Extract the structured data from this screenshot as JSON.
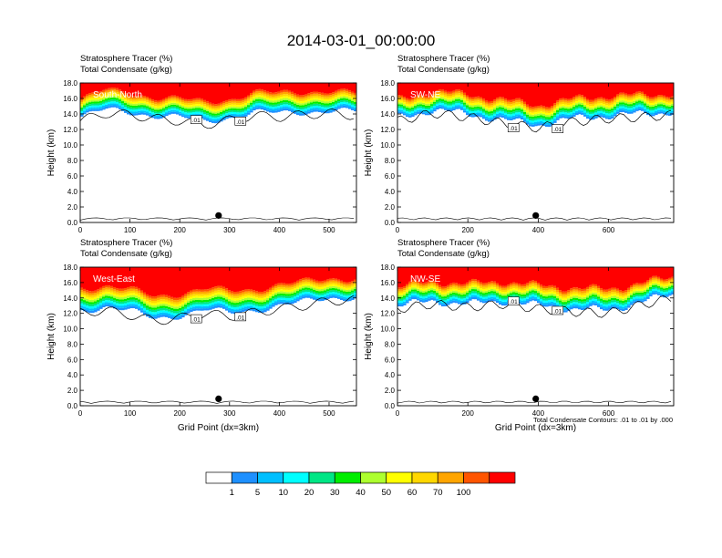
{
  "figure": {
    "title": "2014-03-01_00:00:00",
    "header_line1": "Stratosphere Tracer   (%)",
    "header_line2": "Total Condensate   (g/kg)",
    "ylabel": "Height (km)",
    "xlabel": "Grid Point (dx=3km)",
    "contour_note": "Total Condensate Contours: .01 to .01 by .000",
    "contour_label": ".01",
    "colorbar": {
      "levels": [
        "1",
        "5",
        "10",
        "20",
        "30",
        "40",
        "50",
        "60",
        "70",
        "100"
      ],
      "colors": [
        "#ffffff",
        "#1e90ff",
        "#00bfff",
        "#00ffff",
        "#00e685",
        "#00ee00",
        "#adff2f",
        "#ffff00",
        "#ffd700",
        "#ffa500",
        "#ff5500",
        "#ff0000"
      ]
    }
  },
  "chart_data": [
    {
      "type": "heatmap",
      "panel": "South-North",
      "xlim": [
        0,
        555
      ],
      "ylim": [
        0,
        18
      ],
      "xticks": [
        "0",
        "100",
        "200",
        "300",
        "400",
        "500"
      ],
      "yticks": [
        "0.0",
        "2.0",
        "4.0",
        "6.0",
        "8.0",
        "10.0",
        "12.0",
        "14.0",
        "16.0",
        "18.0"
      ],
      "marker": {
        "x": 278,
        "y": 0.9
      },
      "tracer_profile": [
        {
          "x": 0,
          "base": 13.5,
          "band": 2.5
        },
        {
          "x": 50,
          "base": 14.5,
          "band": 2.8
        },
        {
          "x": 100,
          "base": 14.3,
          "band": 2.8
        },
        {
          "x": 150,
          "base": 13.8,
          "band": 2.6
        },
        {
          "x": 200,
          "base": 13.5,
          "band": 2.6
        },
        {
          "x": 250,
          "base": 13.0,
          "band": 2.8
        },
        {
          "x": 300,
          "base": 13.6,
          "band": 2.6
        },
        {
          "x": 350,
          "base": 14.2,
          "band": 2.8
        },
        {
          "x": 400,
          "base": 14.0,
          "band": 2.9
        },
        {
          "x": 450,
          "base": 14.3,
          "band": 2.9
        },
        {
          "x": 500,
          "base": 14.5,
          "band": 2.8
        },
        {
          "x": 555,
          "base": 14.2,
          "band": 2.6
        }
      ]
    },
    {
      "type": "heatmap",
      "panel": "SW-NE",
      "xlim": [
        0,
        785
      ],
      "ylim": [
        0,
        18
      ],
      "xticks": [
        "0",
        "200",
        "400",
        "600"
      ],
      "yticks": [
        "0.0",
        "2.0",
        "4.0",
        "6.0",
        "8.0",
        "10.0",
        "12.0",
        "14.0",
        "16.0",
        "18.0"
      ],
      "marker": {
        "x": 393,
        "y": 0.9
      },
      "tracer_profile": [
        {
          "x": 0,
          "base": 13.5,
          "band": 2.6
        },
        {
          "x": 100,
          "base": 14.5,
          "band": 2.7
        },
        {
          "x": 200,
          "base": 14.0,
          "band": 2.8
        },
        {
          "x": 300,
          "base": 13.2,
          "band": 2.9
        },
        {
          "x": 400,
          "base": 12.6,
          "band": 2.8
        },
        {
          "x": 500,
          "base": 13.4,
          "band": 2.8
        },
        {
          "x": 600,
          "base": 13.8,
          "band": 2.8
        },
        {
          "x": 700,
          "base": 14.0,
          "band": 2.7
        },
        {
          "x": 785,
          "base": 14.3,
          "band": 2.6
        }
      ]
    },
    {
      "type": "heatmap",
      "panel": "West-East",
      "xlim": [
        0,
        555
      ],
      "ylim": [
        0,
        18
      ],
      "xticks": [
        "0",
        "100",
        "200",
        "300",
        "400",
        "500"
      ],
      "yticks": [
        "0.0",
        "2.0",
        "4.0",
        "6.0",
        "8.0",
        "10.0",
        "12.0",
        "14.0",
        "16.0",
        "18.0"
      ],
      "marker": {
        "x": 278,
        "y": 0.9
      },
      "tracer_profile": [
        {
          "x": 0,
          "base": 12.5,
          "band": 3.2
        },
        {
          "x": 50,
          "base": 12.8,
          "band": 3.0
        },
        {
          "x": 100,
          "base": 12.2,
          "band": 3.1
        },
        {
          "x": 150,
          "base": 11.4,
          "band": 3.2
        },
        {
          "x": 200,
          "base": 11.8,
          "band": 3.1
        },
        {
          "x": 250,
          "base": 12.4,
          "band": 3.0
        },
        {
          "x": 300,
          "base": 12.0,
          "band": 3.2
        },
        {
          "x": 350,
          "base": 12.5,
          "band": 3.0
        },
        {
          "x": 400,
          "base": 13.0,
          "band": 3.0
        },
        {
          "x": 450,
          "base": 13.4,
          "band": 2.9
        },
        {
          "x": 500,
          "base": 14.0,
          "band": 2.8
        },
        {
          "x": 555,
          "base": 14.2,
          "band": 2.7
        }
      ]
    },
    {
      "type": "heatmap",
      "panel": "NW-SE",
      "xlim": [
        0,
        785
      ],
      "ylim": [
        0,
        18
      ],
      "xticks": [
        "0",
        "200",
        "400",
        "600"
      ],
      "yticks": [
        "0.0",
        "2.0",
        "4.0",
        "6.0",
        "8.0",
        "10.0",
        "12.0",
        "14.0",
        "16.0",
        "18.0"
      ],
      "marker": {
        "x": 393,
        "y": 0.9
      },
      "tracer_profile": [
        {
          "x": 0,
          "base": 13.0,
          "band": 2.7
        },
        {
          "x": 100,
          "base": 13.6,
          "band": 2.8
        },
        {
          "x": 200,
          "base": 13.2,
          "band": 2.9
        },
        {
          "x": 300,
          "base": 13.6,
          "band": 2.8
        },
        {
          "x": 400,
          "base": 13.0,
          "band": 2.9
        },
        {
          "x": 500,
          "base": 12.6,
          "band": 3.0
        },
        {
          "x": 600,
          "base": 12.4,
          "band": 3.0
        },
        {
          "x": 700,
          "base": 13.6,
          "band": 2.7
        },
        {
          "x": 785,
          "base": 14.4,
          "band": 2.5
        }
      ]
    }
  ]
}
